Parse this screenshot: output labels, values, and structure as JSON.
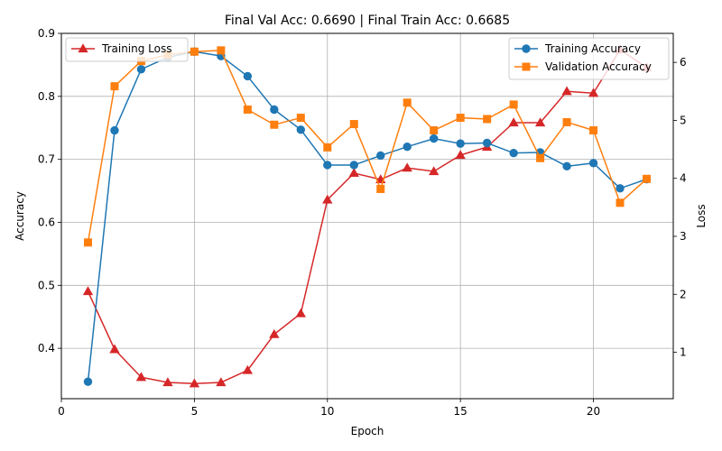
{
  "chart_data": {
    "type": "line",
    "title": "Final Val Acc: 0.6690 | Final Train Acc: 0.6685",
    "xlabel": "Epoch",
    "ylabel_left": "Accuracy",
    "ylabel_right": "Loss",
    "xlim": [
      0,
      23
    ],
    "ylim_left": [
      0.32,
      0.9
    ],
    "ylim_right": [
      0.2,
      6.5
    ],
    "x_ticks": [
      0,
      5,
      10,
      15,
      20
    ],
    "y_ticks_left": [
      0.4,
      0.5,
      0.6,
      0.7,
      0.8,
      0.9
    ],
    "y_ticks_right": [
      1,
      2,
      3,
      4,
      5,
      6
    ],
    "grid": true,
    "x": [
      1,
      2,
      3,
      4,
      5,
      6,
      7,
      8,
      9,
      10,
      11,
      12,
      13,
      14,
      15,
      16,
      17,
      18,
      19,
      20,
      21,
      22
    ],
    "series": [
      {
        "name": "Training Accuracy",
        "axis": "left",
        "color": "#1f77b4",
        "marker": "circle",
        "values": [
          0.347,
          0.746,
          0.843,
          0.862,
          0.871,
          0.864,
          0.832,
          0.779,
          0.747,
          0.691,
          0.691,
          0.706,
          0.72,
          0.733,
          0.725,
          0.726,
          0.71,
          0.711,
          0.689,
          0.694,
          0.654,
          0.6685
        ]
      },
      {
        "name": "Validation Accuracy",
        "axis": "left",
        "color": "#ff7f0e",
        "marker": "square",
        "values": [
          0.568,
          0.816,
          0.856,
          0.866,
          0.871,
          0.873,
          0.779,
          0.755,
          0.766,
          0.719,
          0.756,
          0.653,
          0.79,
          0.746,
          0.766,
          0.764,
          0.787,
          0.702,
          0.759,
          0.746,
          0.631,
          0.669
        ]
      },
      {
        "name": "Training Loss",
        "axis": "right",
        "color": "#d62728",
        "marker": "triangle",
        "values": [
          2.05,
          1.05,
          0.57,
          0.48,
          0.46,
          0.48,
          0.69,
          1.31,
          1.67,
          3.63,
          4.09,
          3.98,
          4.18,
          4.12,
          4.4,
          4.54,
          4.96,
          4.96,
          5.5,
          5.47,
          6.22,
          5.91
        ]
      }
    ],
    "legends": [
      {
        "placement": "upper-left",
        "entries": [
          "Training Loss"
        ]
      },
      {
        "placement": "upper-right",
        "entries": [
          "Training Accuracy",
          "Validation Accuracy"
        ]
      }
    ]
  }
}
